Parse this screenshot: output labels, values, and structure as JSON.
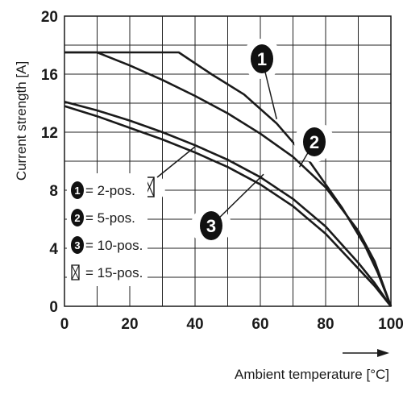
{
  "chart_data": {
    "type": "line",
    "title": "",
    "xlabel": "Ambient temperature [°C]",
    "ylabel": "Current strength [A]",
    "xlim": [
      0,
      100
    ],
    "ylim": [
      0,
      20
    ],
    "x_ticks": [
      "0",
      "20",
      "40",
      "60",
      "80",
      "100"
    ],
    "y_ticks": [
      "0",
      "4",
      "8",
      "12",
      "16",
      "20"
    ],
    "grid": true,
    "series": [
      {
        "id": "1",
        "points": [
          [
            0,
            17.5
          ],
          [
            35,
            17.5
          ],
          [
            45,
            16.0
          ],
          [
            55,
            14.6
          ],
          [
            65,
            12.6
          ],
          [
            75,
            10.0
          ],
          [
            85,
            6.8
          ],
          [
            92,
            4.2
          ],
          [
            96,
            2.3
          ],
          [
            100,
            0
          ]
        ]
      },
      {
        "id": "2",
        "points": [
          [
            0,
            17.5
          ],
          [
            10,
            17.5
          ],
          [
            20,
            16.6
          ],
          [
            30,
            15.6
          ],
          [
            40,
            14.5
          ],
          [
            50,
            13.3
          ],
          [
            60,
            11.9
          ],
          [
            70,
            10.3
          ],
          [
            80,
            8.2
          ],
          [
            90,
            5.2
          ],
          [
            95,
            3.1
          ],
          [
            100,
            0
          ]
        ]
      },
      {
        "id": "3",
        "points": [
          [
            0,
            13.8
          ],
          [
            10,
            13.1
          ],
          [
            20,
            12.3
          ],
          [
            30,
            11.5
          ],
          [
            40,
            10.6
          ],
          [
            50,
            9.6
          ],
          [
            60,
            8.4
          ],
          [
            70,
            6.9
          ],
          [
            80,
            5.0
          ],
          [
            90,
            2.6
          ],
          [
            95,
            1.4
          ],
          [
            100,
            0
          ]
        ]
      },
      {
        "id": "15",
        "points": [
          [
            0,
            14.1
          ],
          [
            10,
            13.5
          ],
          [
            20,
            12.8
          ],
          [
            30,
            12.0
          ],
          [
            40,
            11.1
          ],
          [
            50,
            10.1
          ],
          [
            60,
            8.9
          ],
          [
            70,
            7.4
          ],
          [
            80,
            5.5
          ],
          [
            90,
            3.0
          ],
          [
            95,
            1.6
          ],
          [
            100,
            0
          ]
        ]
      }
    ],
    "callouts": [
      {
        "label": "1",
        "value": [
          65,
          12.9
        ]
      },
      {
        "label": "2",
        "value": [
          72,
          9.6
        ]
      },
      {
        "label": "3",
        "value": [
          61,
          9.1
        ]
      },
      {
        "label": "15",
        "value": [
          40,
          11.0
        ]
      }
    ],
    "legend": [
      {
        "marker": "1",
        "text": "= 2-pos."
      },
      {
        "marker": "2",
        "text": "= 5-pos."
      },
      {
        "marker": "3",
        "text": "= 10-pos."
      },
      {
        "marker": "15",
        "text": "= 15-pos."
      }
    ],
    "legend_position": "left"
  }
}
